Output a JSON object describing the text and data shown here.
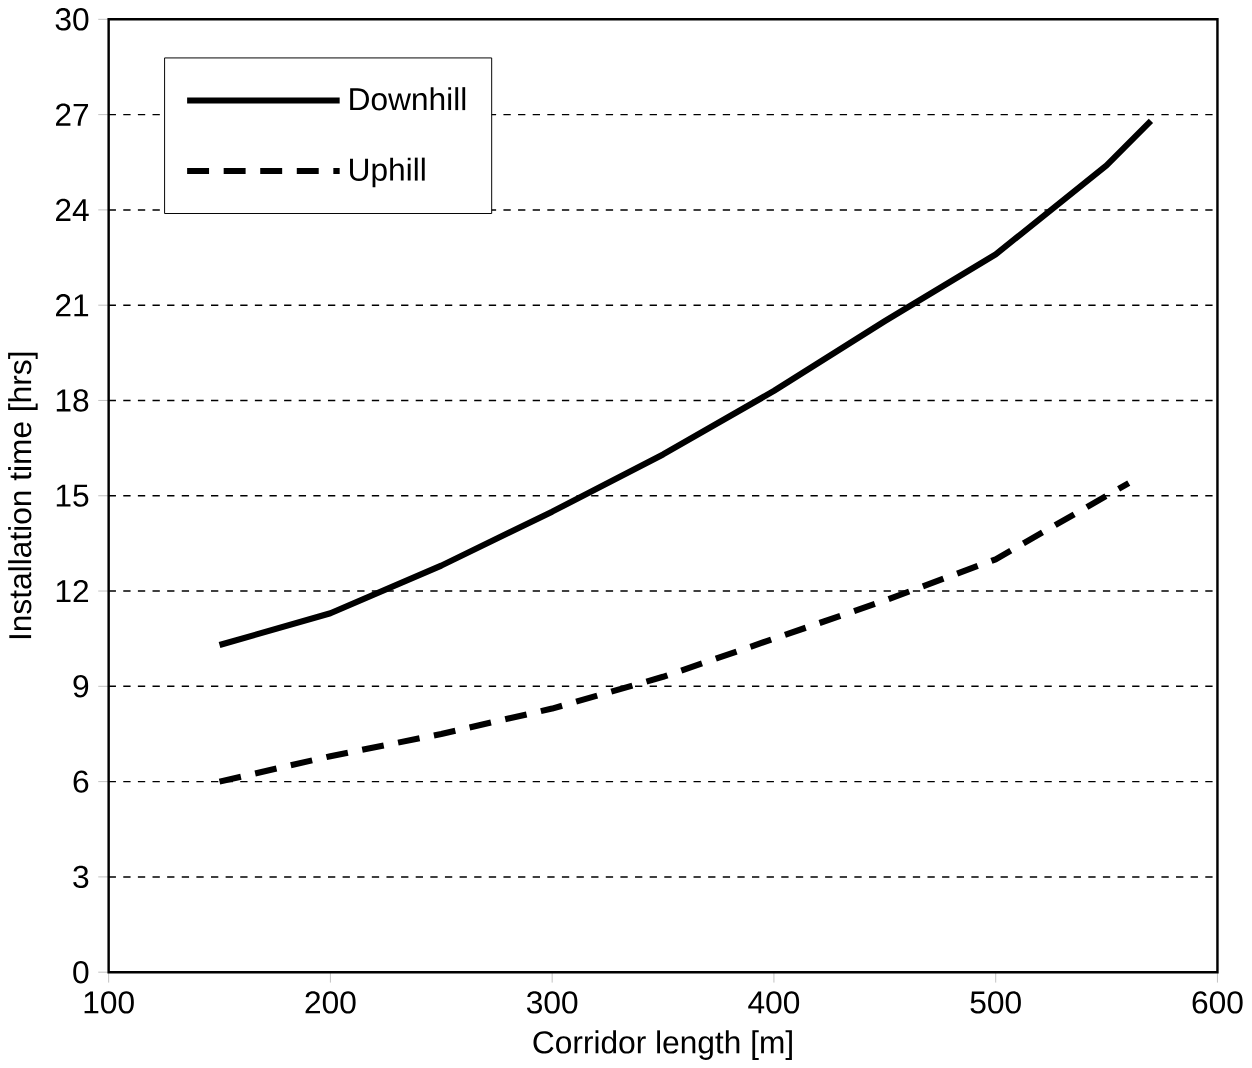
{
  "chart_data": {
    "type": "line",
    "xlabel": "Corridor length [m]",
    "ylabel": "Installation time [hrs]",
    "xlim": [
      100,
      600
    ],
    "xticks": [
      100,
      200,
      300,
      400,
      500,
      600
    ],
    "ylim": [
      0,
      30
    ],
    "yticks": [
      0,
      3,
      6,
      9,
      12,
      15,
      18,
      21,
      24,
      27,
      30
    ],
    "grid": "y",
    "legend": "top left",
    "marker": "none",
    "series": [
      {
        "name": "Downhill",
        "color": "#000000",
        "line_style": "solid",
        "x": [
          150,
          200,
          250,
          300,
          350,
          400,
          450,
          500,
          550,
          570
        ],
        "values": [
          10.3,
          11.3,
          12.8,
          14.5,
          16.3,
          18.3,
          20.5,
          22.6,
          25.4,
          26.8
        ]
      },
      {
        "name": "Uphill",
        "color": "#000000",
        "line_style": "dashed",
        "x": [
          150,
          200,
          250,
          300,
          350,
          400,
          450,
          500,
          560
        ],
        "values": [
          6.0,
          6.8,
          7.5,
          8.3,
          9.3,
          10.5,
          11.7,
          13.0,
          15.4
        ]
      }
    ]
  }
}
